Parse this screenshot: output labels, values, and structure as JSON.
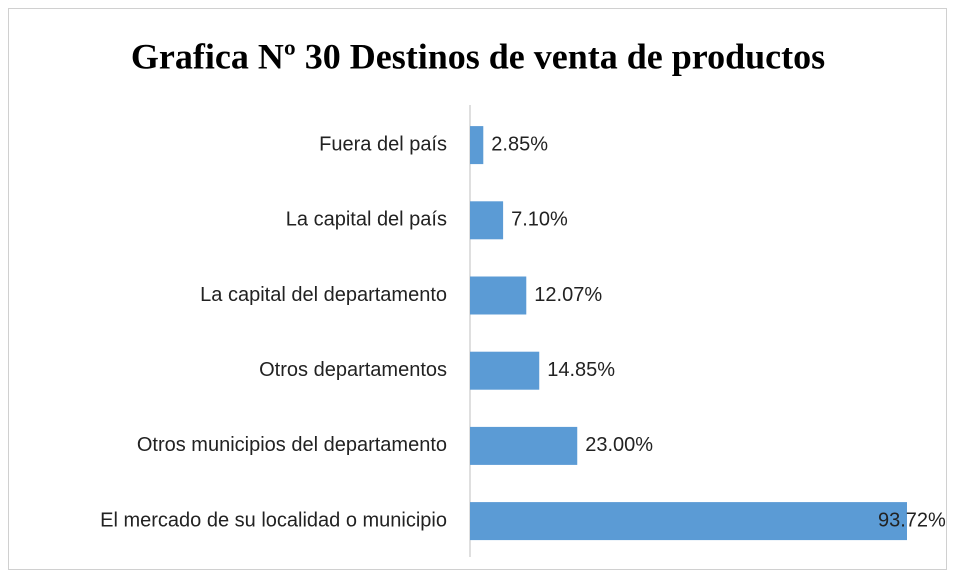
{
  "chart_data": {
    "type": "bar",
    "orientation": "horizontal",
    "title": "Grafica Nº 30 Destinos de venta de productos",
    "categories": [
      "Fuera del país",
      "La capital del país",
      "La capital del departamento",
      "Otros departamentos",
      "Otros municipios del departamento",
      "El mercado de su localidad o municipio"
    ],
    "values": [
      2.85,
      7.1,
      12.07,
      14.85,
      23.0,
      93.72
    ],
    "value_labels": [
      "2.85%",
      "7.10%",
      "12.07%",
      "14.85%",
      "23.00%",
      "93.72%"
    ],
    "color": "#5b9bd5"
  }
}
